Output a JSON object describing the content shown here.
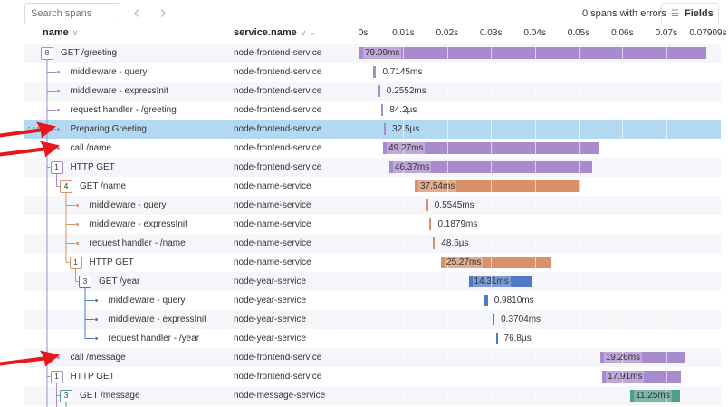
{
  "toolbar": {
    "search_placeholder": "Search spans",
    "prev_icon": "chevron-left-icon",
    "next_icon": "chevron-right-icon",
    "errors_text": "0 spans with errors",
    "fields_label": "Fields"
  },
  "columns": {
    "name": "name",
    "service": "service.name"
  },
  "timeline": {
    "ticks": [
      "0s",
      "0.01s",
      "0.02s",
      "0.03s",
      "0.04s",
      "0.05s",
      "0.06s",
      "0.07s",
      "0.07909s"
    ],
    "total_ms": 79.09
  },
  "colors": {
    "node-frontend-service": "#a88bcc",
    "node-name-service": "#d99169",
    "node-year-service": "#4f78c9",
    "node-message-service": "#4f9e89",
    "selected": "#b3d9f2",
    "arrow": "#e8171a"
  },
  "spans": [
    {
      "name": "GET /greeting",
      "service": "node-frontend-service",
      "depth": 0,
      "children": 8,
      "start_ms": 0,
      "duration": "79.09ms",
      "dur_ms": 79.09
    },
    {
      "name": "middleware - query",
      "service": "node-frontend-service",
      "depth": 1,
      "start_ms": 3.1,
      "duration": "0.7145ms",
      "dur_ms": 0.7145
    },
    {
      "name": "middleware - expressInit",
      "service": "node-frontend-service",
      "depth": 1,
      "start_ms": 4.3,
      "duration": "0.2552ms",
      "dur_ms": 0.2552
    },
    {
      "name": "request handler - /greeting",
      "service": "node-frontend-service",
      "depth": 1,
      "start_ms": 5.0,
      "duration": "84.2µs",
      "dur_ms": 0.0842
    },
    {
      "name": "Preparing Greeting",
      "service": "node-frontend-service",
      "depth": 1,
      "start_ms": 5.6,
      "duration": "32.5µs",
      "dur_ms": 0.0325,
      "selected": true
    },
    {
      "name": "call /name",
      "service": "node-frontend-service",
      "depth": 1,
      "start_ms": 5.4,
      "duration": "49.27ms",
      "dur_ms": 49.27
    },
    {
      "name": "HTTP GET",
      "service": "node-frontend-service",
      "depth": 1,
      "children": 1,
      "start_ms": 6.8,
      "duration": "46.37ms",
      "dur_ms": 46.37
    },
    {
      "name": "GET /name",
      "service": "node-name-service",
      "depth": 2,
      "children": 4,
      "start_ms": 12.6,
      "duration": "37.54ms",
      "dur_ms": 37.54
    },
    {
      "name": "middleware - query",
      "service": "node-name-service",
      "depth": 3,
      "start_ms": 15.1,
      "duration": "0.5545ms",
      "dur_ms": 0.5545
    },
    {
      "name": "middleware - expressInit",
      "service": "node-name-service",
      "depth": 3,
      "start_ms": 16.0,
      "duration": "0.1879ms",
      "dur_ms": 0.1879
    },
    {
      "name": "request handler - /name",
      "service": "node-name-service",
      "depth": 3,
      "start_ms": 16.8,
      "duration": "48.6µs",
      "dur_ms": 0.0486
    },
    {
      "name": "HTTP GET",
      "service": "node-name-service",
      "depth": 3,
      "children": 1,
      "start_ms": 18.6,
      "duration": "25.27ms",
      "dur_ms": 25.27
    },
    {
      "name": "GET /year",
      "service": "node-year-service",
      "depth": 4,
      "children": 3,
      "start_ms": 24.9,
      "duration": "14.31ms",
      "dur_ms": 14.31
    },
    {
      "name": "middleware - query",
      "service": "node-year-service",
      "depth": 5,
      "start_ms": 28.3,
      "duration": "0.9810ms",
      "dur_ms": 0.981
    },
    {
      "name": "middleware - expressInit",
      "service": "node-year-service",
      "depth": 5,
      "start_ms": 30.4,
      "duration": "0.3704ms",
      "dur_ms": 0.3704
    },
    {
      "name": "request handler - /year",
      "service": "node-year-service",
      "depth": 5,
      "start_ms": 31.1,
      "duration": "76.8µs",
      "dur_ms": 0.0768
    },
    {
      "name": "call /message",
      "service": "node-frontend-service",
      "depth": 1,
      "start_ms": 54.9,
      "duration": "19.26ms",
      "dur_ms": 19.26
    },
    {
      "name": "HTTP GET",
      "service": "node-frontend-service",
      "depth": 1,
      "children": 1,
      "start_ms": 55.4,
      "duration": "17.91ms",
      "dur_ms": 17.91
    },
    {
      "name": "GET /message",
      "service": "node-message-service",
      "depth": 2,
      "children": 3,
      "start_ms": 61.8,
      "duration": "11.25ms",
      "dur_ms": 11.25
    }
  ]
}
